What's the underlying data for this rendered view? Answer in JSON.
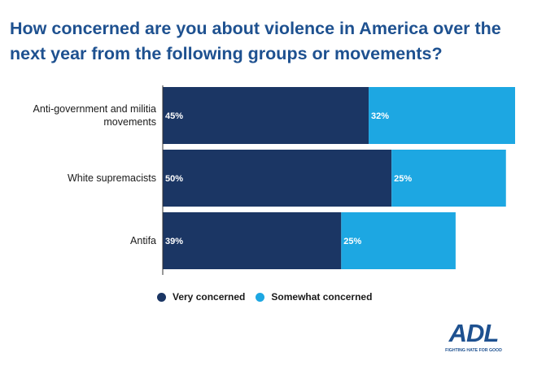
{
  "title": "How concerned are you about violence in America over the next year from the following groups or movements?",
  "colors": {
    "very": "#1b3664",
    "somewhat": "#1da7e2",
    "title": "#1e5190",
    "axis": "#333333"
  },
  "chart_data": {
    "type": "bar",
    "orientation": "horizontal",
    "stacked": true,
    "categories": [
      [
        "Anti-government and militia",
        "movements"
      ],
      [
        "White supremacists"
      ],
      [
        "Antifa"
      ]
    ],
    "series": [
      {
        "name": "Very concerned",
        "values": [
          45,
          50,
          39
        ],
        "labels": [
          "45%",
          "50%",
          "39%"
        ]
      },
      {
        "name": "Somewhat concerned",
        "values": [
          32,
          25,
          25
        ],
        "labels": [
          "32%",
          "25%",
          "25%"
        ]
      }
    ],
    "xlim": [
      0,
      77
    ],
    "legend_position": "bottom"
  },
  "legend": {
    "very": "Very concerned",
    "somewhat": "Somewhat concerned"
  },
  "logo": {
    "text": "ADL",
    "tagline": "FIGHTING HATE FOR GOOD"
  }
}
